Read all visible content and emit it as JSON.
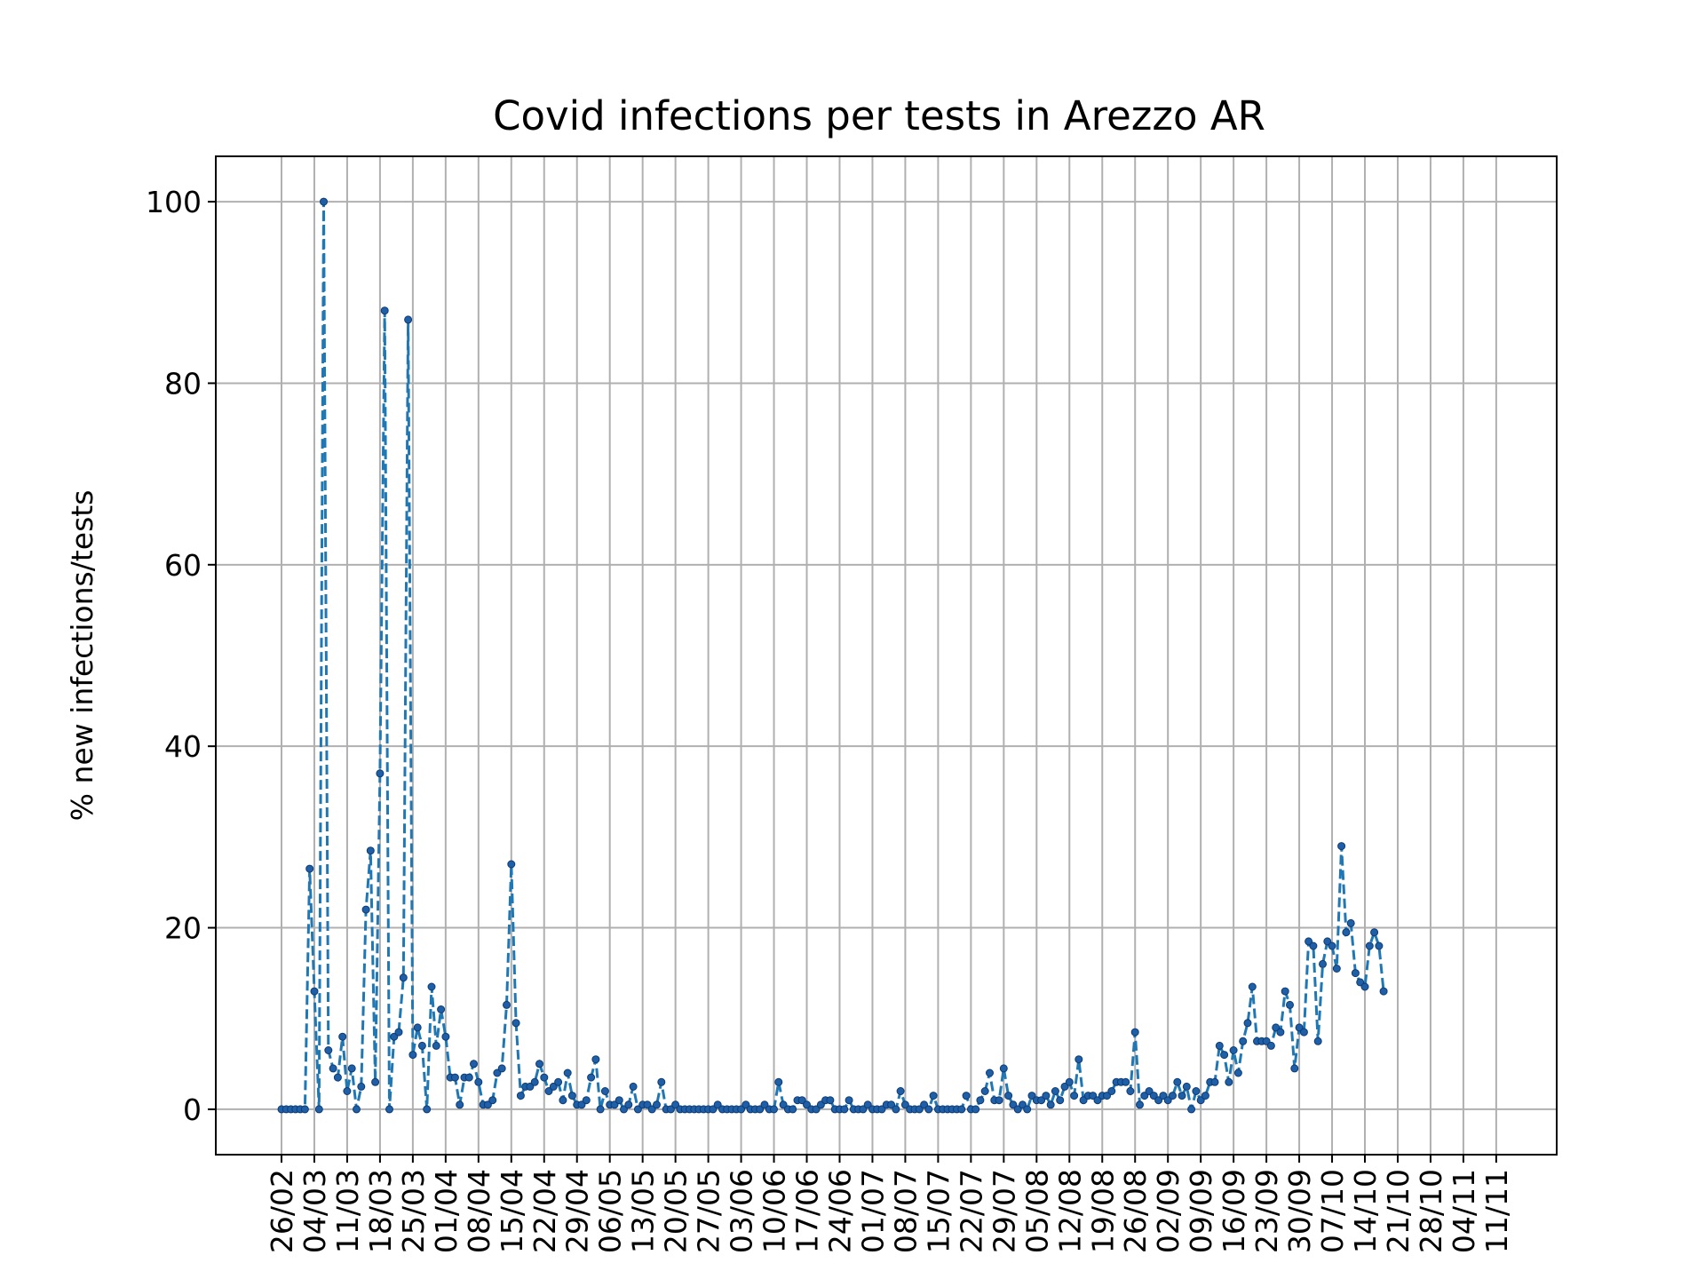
{
  "chart_data": {
    "type": "line",
    "title": "Covid infections per tests in Arezzo AR",
    "xlabel": "",
    "ylabel": "% new infections/tests",
    "ylim": [
      -5,
      105
    ],
    "yticks": [
      0,
      20,
      40,
      60,
      80,
      100
    ],
    "grid": true,
    "legend": "none",
    "x_start": "26/02",
    "xtick_labels": [
      "26/02",
      "04/03",
      "11/03",
      "18/03",
      "25/03",
      "01/04",
      "08/04",
      "15/04",
      "22/04",
      "29/04",
      "06/05",
      "13/05",
      "20/05",
      "27/05",
      "03/06",
      "10/06",
      "17/06",
      "24/06",
      "01/07",
      "08/07",
      "15/07",
      "22/07",
      "29/07",
      "05/08",
      "12/08",
      "19/08",
      "26/08",
      "02/09",
      "09/09",
      "16/09",
      "23/09",
      "30/09",
      "07/10",
      "14/10",
      "21/10",
      "28/10",
      "04/11",
      "11/11"
    ],
    "series": [
      {
        "color": "#1f77b4",
        "values": [
          0,
          0,
          0,
          0,
          0,
          0,
          26.5,
          13,
          0,
          100,
          6.5,
          4.5,
          3.5,
          8,
          2,
          4.5,
          0,
          2.5,
          22,
          28.5,
          3,
          37,
          88,
          0,
          8,
          8.5,
          14.5,
          87,
          6,
          9,
          7,
          0,
          13.5,
          7,
          11,
          8,
          3.5,
          3.5,
          0.5,
          3.5,
          3.5,
          5,
          3,
          0.5,
          0.5,
          1,
          4,
          4.5,
          11.5,
          27,
          9.5,
          1.5,
          2.5,
          2.5,
          3,
          5,
          3.5,
          2,
          2.5,
          3,
          1,
          4,
          1.5,
          0.5,
          0.5,
          1,
          3.5,
          5.5,
          0,
          2,
          0.5,
          0.5,
          1,
          0,
          0.5,
          2.5,
          0,
          0.5,
          0.5,
          0,
          0.5,
          3,
          0,
          0,
          0.5,
          0,
          0,
          0,
          0,
          0,
          0,
          0,
          0,
          0.5,
          0,
          0,
          0,
          0,
          0,
          0.5,
          0,
          0,
          0,
          0.5,
          0,
          0,
          3,
          0.5,
          0,
          0,
          1,
          1,
          0.5,
          0,
          0,
          0.5,
          1,
          1,
          0,
          0,
          0,
          1,
          0,
          0,
          0,
          0.5,
          0,
          0,
          0,
          0.5,
          0.5,
          0,
          2,
          0.5,
          0,
          0,
          0,
          0.5,
          0,
          1.5,
          0,
          0,
          0,
          0,
          0,
          0,
          1.5,
          0,
          0,
          1,
          2,
          4,
          1,
          1,
          4.5,
          1.5,
          0.5,
          0,
          0.5,
          0,
          1.5,
          1,
          1,
          1.5,
          0.5,
          2,
          1,
          2.5,
          3,
          1.5,
          5.5,
          1,
          1.5,
          1.5,
          1,
          1.5,
          1.5,
          2,
          3,
          3,
          3,
          2,
          8.5,
          0.5,
          1.5,
          2,
          1.5,
          1,
          1.5,
          1,
          1.5,
          3,
          1.5,
          2.5,
          0,
          2,
          1,
          1.5,
          3,
          3,
          7,
          6,
          3,
          6.5,
          4,
          7.5,
          9.5,
          13.5,
          7.5,
          7.5,
          7.5,
          7,
          9,
          8.5,
          13,
          11.5,
          4.5,
          9,
          8.5,
          18.5,
          18,
          7.5,
          16,
          18.5,
          18,
          15.5,
          29,
          19.5,
          20.5,
          15,
          14,
          13.5,
          18,
          19.5,
          18,
          13
        ]
      }
    ]
  }
}
